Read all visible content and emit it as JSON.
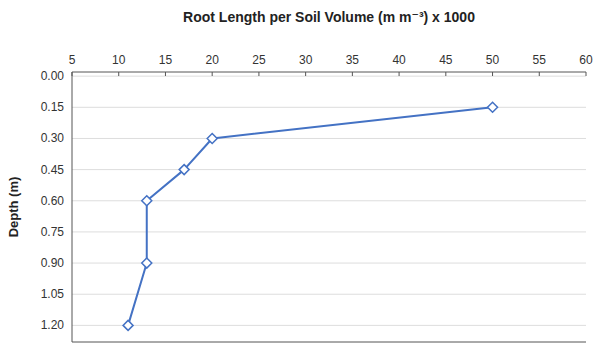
{
  "chart_data": {
    "type": "line",
    "title": "Root Length per Soil Volume (m m⁻³) x 1000",
    "ylabel": "Depth (m)",
    "x": [
      50,
      20,
      17,
      13,
      13,
      11
    ],
    "values": [
      0.15,
      0.3,
      0.45,
      0.6,
      0.9,
      1.2
    ],
    "xlim": [
      5,
      60
    ],
    "ylim": [
      1.28,
      -0.02
    ],
    "xticks": [
      5,
      10,
      15,
      20,
      25,
      30,
      35,
      40,
      45,
      50,
      55,
      60
    ],
    "yticks": [
      {
        "value": 0.0,
        "label": "0.00"
      },
      0.15,
      {
        "value": 0.3,
        "label": "0.30"
      },
      0.45,
      {
        "value": 0.6,
        "label": "0.60"
      },
      0.75,
      {
        "value": 0.9,
        "label": "0.90"
      },
      1.05,
      {
        "value": 1.2,
        "label": "1.20"
      }
    ],
    "color": "#4472C4",
    "marker": "diamond",
    "grid": true
  }
}
